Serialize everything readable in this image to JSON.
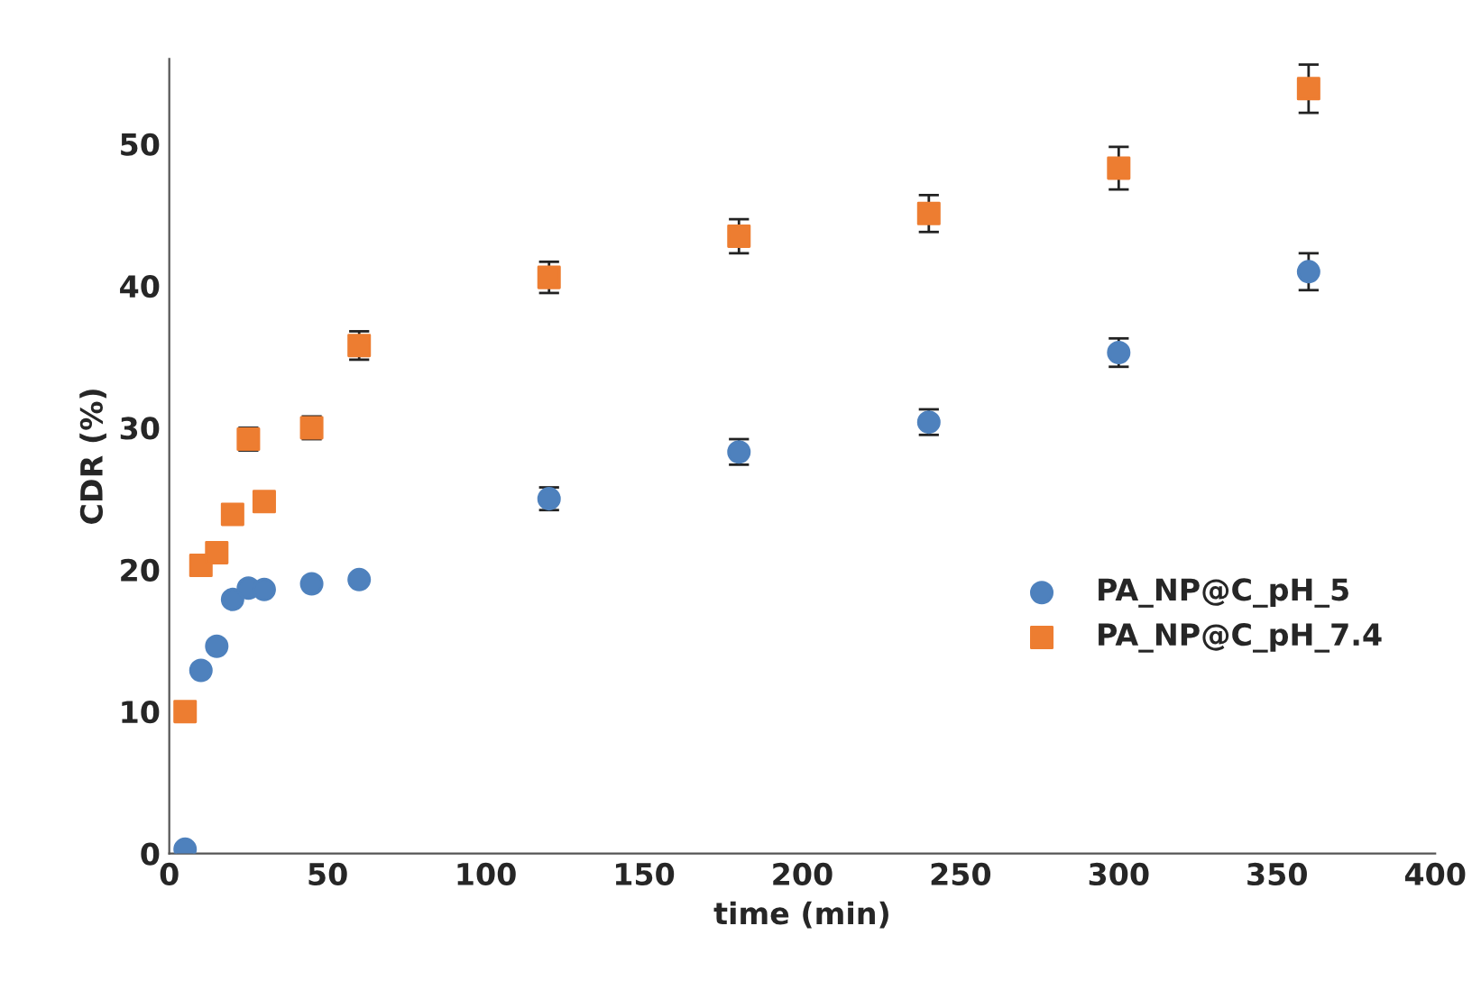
{
  "chart_data": {
    "type": "scatter",
    "xlabel": "time (min)",
    "ylabel": "CDR (%)",
    "x": [
      5,
      10,
      15,
      20,
      25,
      30,
      45,
      60,
      120,
      180,
      240,
      300,
      360
    ],
    "series": [
      {
        "name": "PA_NP@C_pH_5",
        "color": "#4e81bd",
        "marker": "circle",
        "values": [
          0.3,
          12.9,
          14.6,
          17.9,
          18.7,
          18.6,
          19.0,
          19.3,
          25.0,
          28.3,
          30.4,
          35.3,
          41.0
        ],
        "errors": [
          null,
          null,
          null,
          null,
          null,
          null,
          null,
          null,
          0.8,
          0.9,
          0.9,
          1.0,
          1.3
        ]
      },
      {
        "name": "PA_NP@C_pH_7.4",
        "color": "#ed7d31",
        "marker": "square",
        "values": [
          10.0,
          20.3,
          21.2,
          23.9,
          29.2,
          24.8,
          30.0,
          35.8,
          40.6,
          43.5,
          45.1,
          48.3,
          53.9
        ],
        "errors": [
          null,
          null,
          null,
          null,
          0.8,
          null,
          0.8,
          1.0,
          1.1,
          1.2,
          1.3,
          1.5,
          1.7
        ]
      }
    ],
    "xlim": [
      0,
      400
    ],
    "xticks": [
      0,
      50,
      100,
      150,
      200,
      250,
      300,
      350,
      400
    ],
    "ylim": [
      0,
      56
    ],
    "yticks": [
      0,
      10,
      20,
      30,
      40,
      50
    ],
    "grid": false,
    "legend": "right"
  }
}
